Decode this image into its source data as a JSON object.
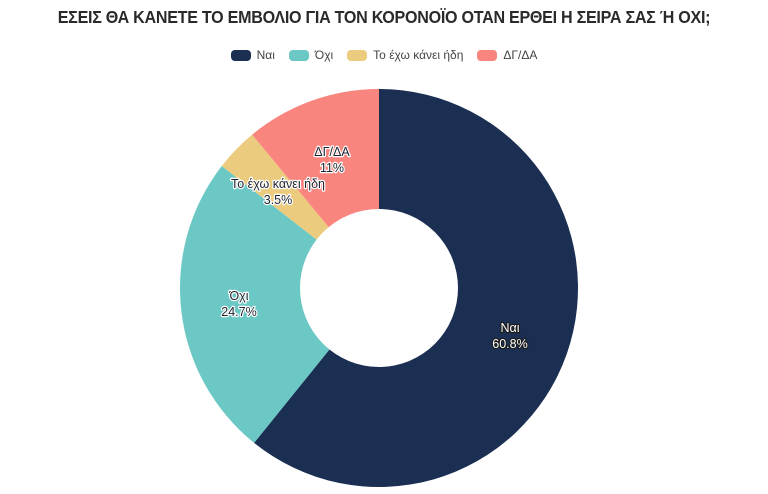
{
  "title": "ΕΣΕΙΣ ΘΑ ΚΑΝΕΤΕ ΤΟ ΕΜΒΟΛΙΟ ΓΙΑ ΤΟΝ ΚΟΡΟΝΟΪΟ ΟΤΑΝ ΕΡΘΕΙ Η ΣΕΙΡΑ ΣΑΣ Ή ΟΧΙ;",
  "legend": [
    {
      "label": "Ναι",
      "color": "#1b2f52"
    },
    {
      "label": "Όχι",
      "color": "#6cc8c5"
    },
    {
      "label": "Το έχω κάνει ήδη",
      "color": "#ebcb7d"
    },
    {
      "label": "ΔΓ/ΔΑ",
      "color": "#f9857f"
    }
  ],
  "labels": {
    "nai_name": "Ναι",
    "nai_value": "60.8%",
    "oxi_name": "Όχι",
    "oxi_value": "24.7%",
    "already_name": "Το έχω κάνει ήδη",
    "already_value": "3.5%",
    "dk_name": "ΔΓ/ΔΑ",
    "dk_value": "11%"
  },
  "chart_data": {
    "type": "pie",
    "subtype": "donut",
    "title": "ΕΣΕΙΣ ΘΑ ΚΑΝΕΤΕ ΤΟ ΕΜΒΟΛΙΟ ΓΙΑ ΤΟΝ ΚΟΡΟΝΟΪΟ ΟΤΑΝ ΕΡΘΕΙ Η ΣΕΙΡΑ ΣΑΣ Ή ΟΧΙ;",
    "categories": [
      "Ναι",
      "Όχι",
      "Το έχω κάνει ήδη",
      "ΔΓ/ΔΑ"
    ],
    "values": [
      60.8,
      24.7,
      3.5,
      11
    ],
    "unit": "%",
    "colors": [
      "#1b2f52",
      "#6cc8c5",
      "#ebcb7d",
      "#f9857f"
    ],
    "start_angle": "12 o'clock, clockwise",
    "legend_position": "top",
    "data_labels": [
      "Ναι 60.8%",
      "Όχι 24.7%",
      "Το έχω κάνει ήδη 3.5%",
      "ΔΓ/ΔΑ 11%"
    ]
  }
}
